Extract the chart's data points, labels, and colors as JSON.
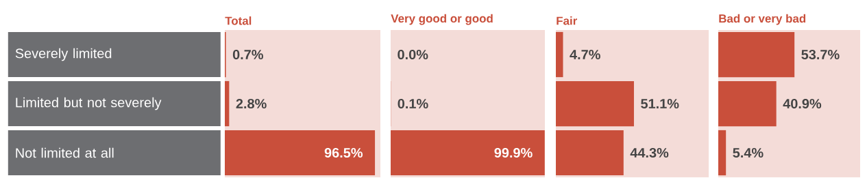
{
  "chart_data": [
    {
      "type": "bar",
      "orientation": "horizontal",
      "title": "Total",
      "categories": [
        "Severely limited",
        "Limited but not severely",
        "Not limited at all"
      ],
      "values": [
        0.7,
        2.8,
        96.5
      ],
      "value_labels": [
        "0.7%",
        "2.8%",
        "96.5%"
      ],
      "color": "#c94f3b",
      "xlim": [
        0,
        100
      ],
      "tick_labels": "y"
    },
    {
      "type": "bar",
      "orientation": "horizontal",
      "title": "Very good or good",
      "values": [
        0.0,
        0.1,
        99.9
      ],
      "value_labels": [
        "0.0%",
        "0.1%",
        "99.9%"
      ],
      "color": "#c94f3b",
      "xlim": [
        0,
        100
      ],
      "tick_labels": false
    },
    {
      "type": "bar",
      "orientation": "horizontal",
      "title": "Fair",
      "values": [
        4.7,
        51.1,
        44.3
      ],
      "value_labels": [
        "4.7%",
        "51.1%",
        "44.3%"
      ],
      "color": "#c94f3b",
      "xlim": [
        0,
        100
      ],
      "tick_labels": false
    },
    {
      "type": "bar",
      "orientation": "horizontal",
      "title": "Bad or very bad",
      "values": [
        53.7,
        40.9,
        5.4
      ],
      "value_labels": [
        "53.7%",
        "40.9%",
        "5.4%"
      ],
      "color": "#c94f3b",
      "xlim": [
        0,
        100
      ],
      "tick_labels": false
    }
  ]
}
